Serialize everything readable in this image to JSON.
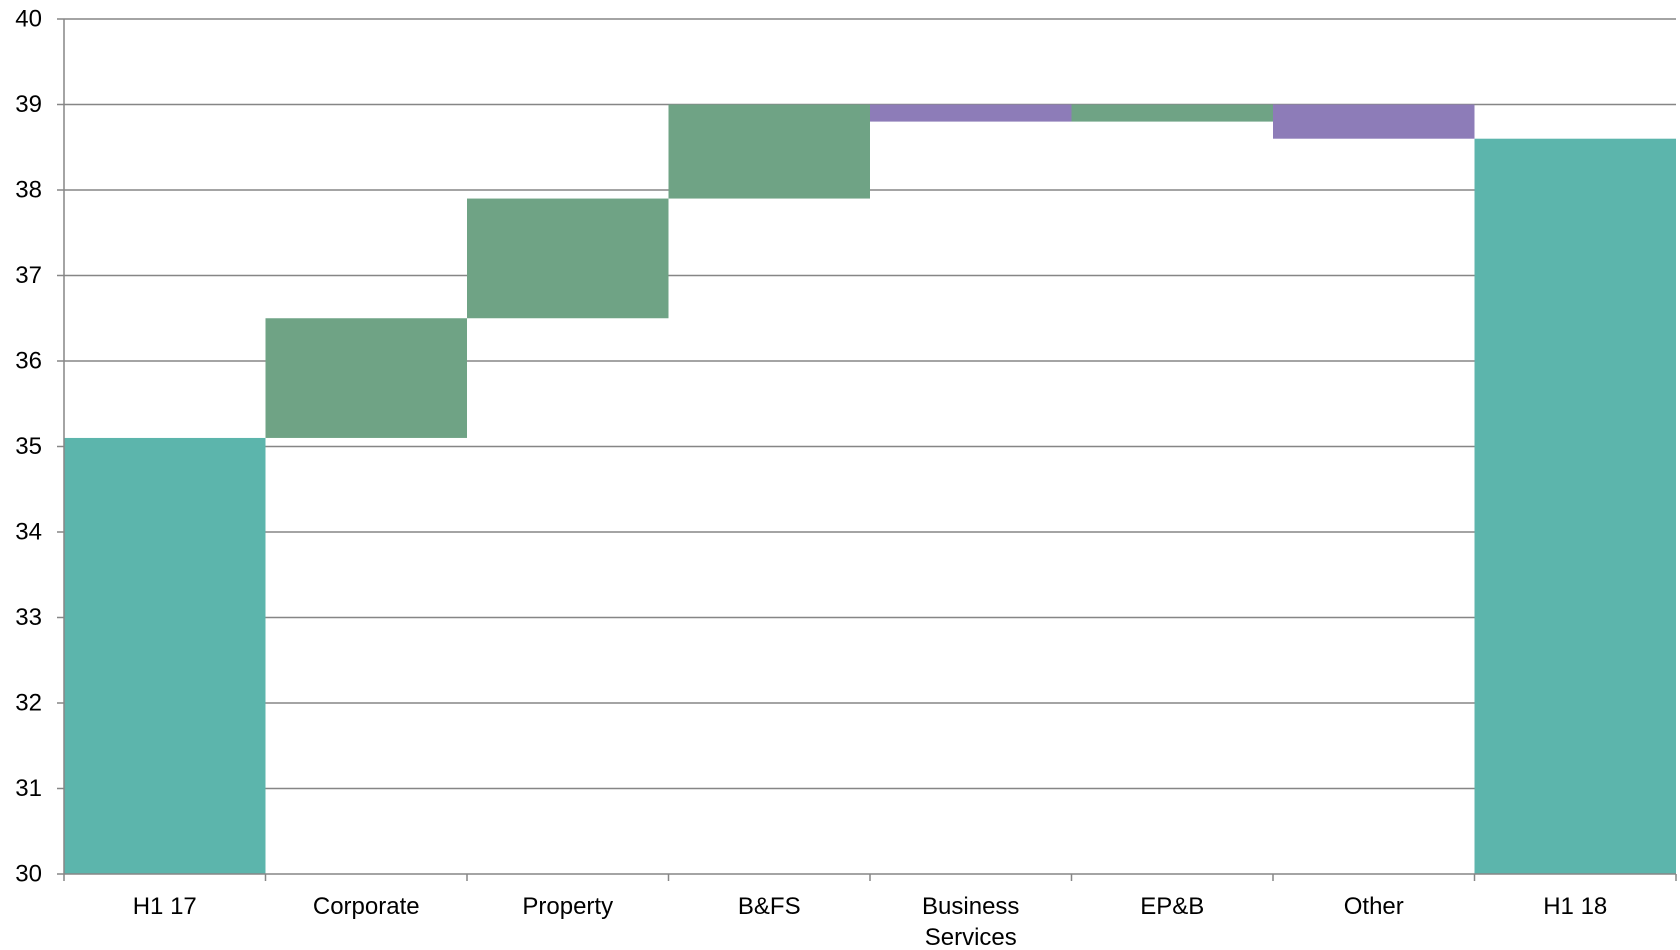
{
  "chart_data": {
    "type": "bar",
    "subtype": "waterfall",
    "title": "",
    "xlabel": "",
    "ylabel": "",
    "ylim": [
      30,
      40
    ],
    "yticks": [
      30,
      31,
      32,
      33,
      34,
      35,
      36,
      37,
      38,
      39,
      40
    ],
    "grid": true,
    "legend": "none",
    "categories": [
      "H1 17",
      "Corporate",
      "Property",
      "B&FS",
      "Business Services",
      "EP&B",
      "Other",
      "H1 18"
    ],
    "category_lines": [
      [
        "H1 17"
      ],
      [
        "Corporate"
      ],
      [
        "Property"
      ],
      [
        "B&FS"
      ],
      [
        "Business",
        "Services"
      ],
      [
        "EP&B"
      ],
      [
        "Other"
      ],
      [
        "H1 18"
      ]
    ],
    "bars": [
      {
        "category": "H1 17",
        "kind": "total",
        "start": 30,
        "end": 35.1
      },
      {
        "category": "Corporate",
        "kind": "increase",
        "start": 35.1,
        "end": 36.5
      },
      {
        "category": "Property",
        "kind": "increase",
        "start": 36.5,
        "end": 37.9
      },
      {
        "category": "B&FS",
        "kind": "increase",
        "start": 37.9,
        "end": 39.0
      },
      {
        "category": "Business Services",
        "kind": "decrease",
        "start": 39.0,
        "end": 38.8
      },
      {
        "category": "EP&B",
        "kind": "increase",
        "start": 38.8,
        "end": 39.0
      },
      {
        "category": "Other",
        "kind": "decrease",
        "start": 39.0,
        "end": 38.6
      },
      {
        "category": "H1 18",
        "kind": "total",
        "start": 30,
        "end": 38.6
      }
    ],
    "colors": {
      "total": "#5cb5ac",
      "increase": "#6fa385",
      "decrease": "#8d7cb8",
      "grid": "#868686",
      "axis": "#868686"
    }
  }
}
